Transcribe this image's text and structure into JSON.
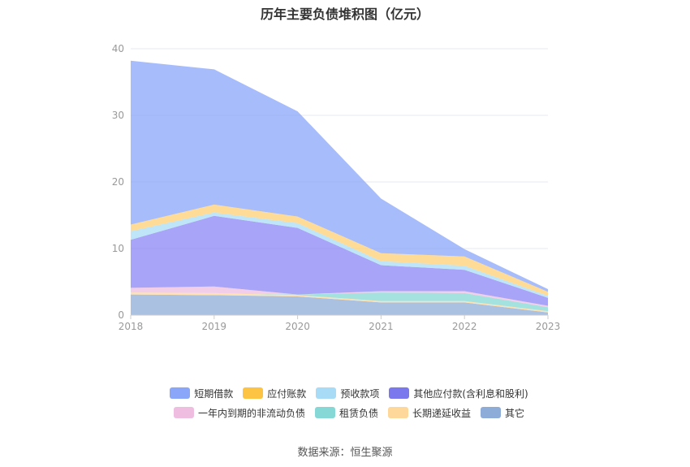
{
  "title": "历年主要负债堆积图（亿元）",
  "source": "数据来源：恒生聚源",
  "chart_data": {
    "type": "area",
    "stacked": true,
    "title": "历年主要负债堆积图（亿元）",
    "x": [
      "2018",
      "2019",
      "2020",
      "2021",
      "2022",
      "2023"
    ],
    "ylim": [
      0,
      40
    ],
    "yticks": [
      0,
      10,
      20,
      30,
      40
    ],
    "grid": true,
    "legend_position": "bottom",
    "series": [
      {
        "name": "其它",
        "color": "#8eacd8",
        "values": [
          3.1,
          3.0,
          2.8,
          1.9,
          1.9,
          0.4
        ]
      },
      {
        "name": "长期递延收益",
        "color": "#fdd89a",
        "values": [
          0.3,
          0.3,
          0.2,
          0.2,
          0.2,
          0.2
        ]
      },
      {
        "name": "租赁负债",
        "color": "#86d8d6",
        "values": [
          0.0,
          0.0,
          0.1,
          1.3,
          1.2,
          0.6
        ]
      },
      {
        "name": "一年内到期的非流动负债",
        "color": "#efbde0",
        "values": [
          0.7,
          1.0,
          0.0,
          0.2,
          0.3,
          0.2
        ]
      },
      {
        "name": "其他应付款(含利息和股利)",
        "color": "#8b86f4",
        "values": [
          7.2,
          10.6,
          10.0,
          3.9,
          3.2,
          1.2
        ]
      },
      {
        "name": "预收款项",
        "color": "#a8dcf6",
        "values": [
          1.3,
          0.5,
          0.7,
          0.6,
          0.6,
          0.3
        ]
      },
      {
        "name": "应付账款",
        "color": "#fdd075",
        "values": [
          1.0,
          1.2,
          1.0,
          1.2,
          1.4,
          0.6
        ]
      },
      {
        "name": "短期借款",
        "color": "#8aa6f8",
        "values": [
          24.6,
          20.3,
          15.8,
          8.2,
          1.1,
          0.4
        ]
      }
    ]
  },
  "legend": {
    "row1": [
      {
        "label": "短期借款",
        "color": "#8aa6f8"
      },
      {
        "label": "应付账款",
        "color": "#fdc443"
      },
      {
        "label": "预收款项",
        "color": "#a8dcf6"
      },
      {
        "label": "其他应付款(含利息和股利)",
        "color": "#7b78ee"
      }
    ],
    "row2": [
      {
        "label": "一年内到期的非流动负债",
        "color": "#efbde0"
      },
      {
        "label": "租赁负债",
        "color": "#86d8d6"
      },
      {
        "label": "长期递延收益",
        "color": "#fdd89a"
      },
      {
        "label": "其它",
        "color": "#8eacd8"
      }
    ]
  }
}
